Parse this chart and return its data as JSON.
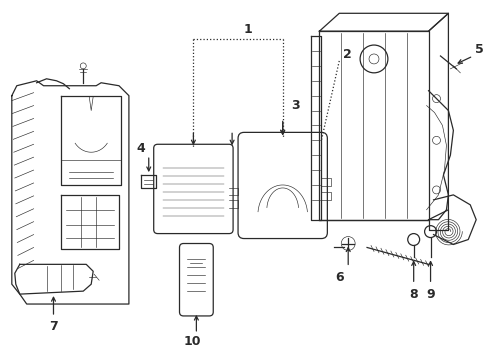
{
  "bg_color": "#ffffff",
  "line_color": "#2a2a2a",
  "label_color": "#000000",
  "lw_main": 0.9,
  "lw_thin": 0.45,
  "label_fs": 8.5
}
